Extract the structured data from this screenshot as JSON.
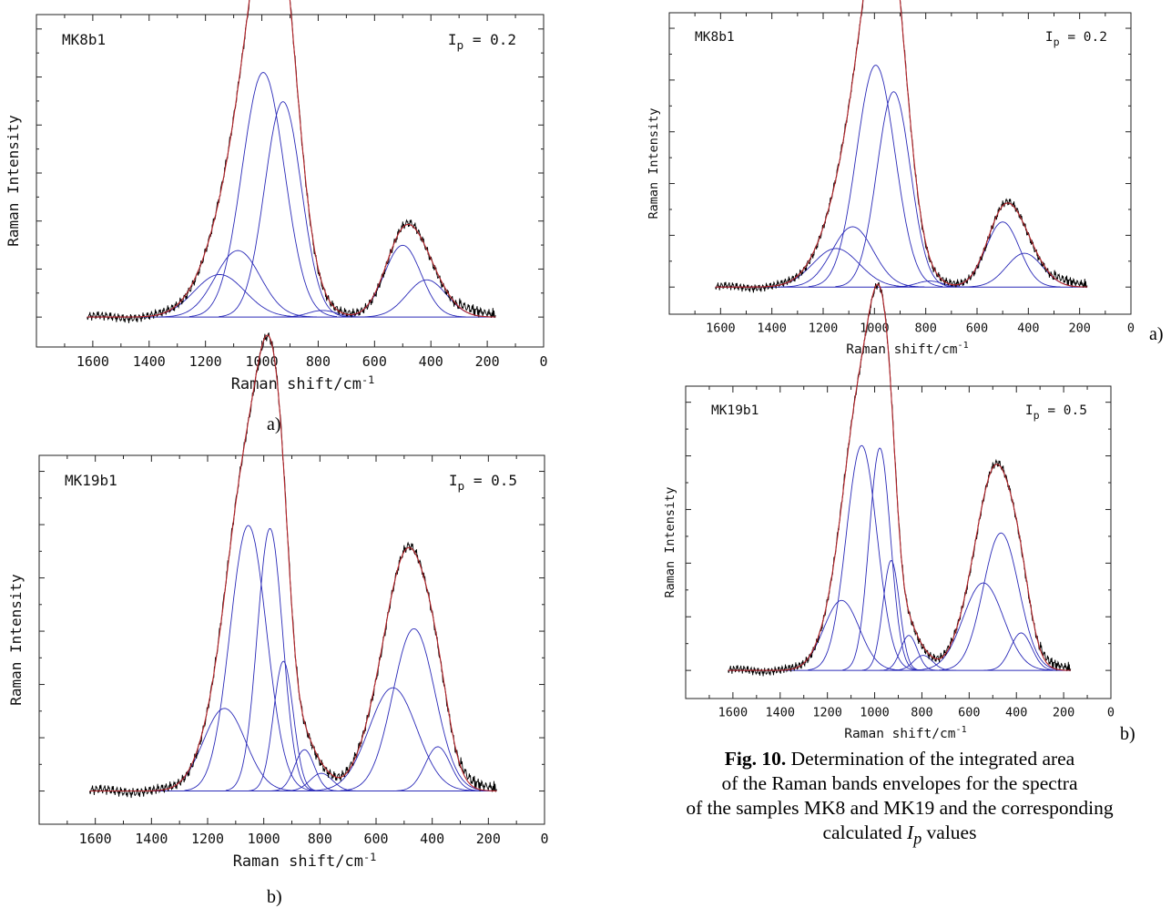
{
  "panel_letters": [
    "a)",
    "b)",
    "a)",
    "b)"
  ],
  "caption": {
    "figure_number": "Fig. 10.",
    "line1": "Determination of the integrated area",
    "line2": "of the Raman bands envelopes for the spectra",
    "line3": "of the samples MK8 and MK19 and the corresponding",
    "line4_pre": "calculated ",
    "line4_var": "I",
    "line4_sub": "p",
    "line4_post": " values"
  },
  "chart_data": [
    {
      "type": "line",
      "sample_label": "MK8b1",
      "ip_label": {
        "symbol": "I",
        "subscript": "p",
        "text": " = 0.2"
      },
      "xlabel": "Raman shift/cm",
      "xlabel_sup": "-1",
      "ylabel": "Raman Intensity",
      "x_ticks": [
        "1600",
        "1400",
        "1200",
        "1000",
        "800",
        "600",
        "400",
        "200",
        "0"
      ],
      "xlim": [
        1800,
        0
      ],
      "ylim": [
        0,
        1.2
      ],
      "x_reversed": true,
      "grid": false,
      "x_range_data": [
        170,
        1620
      ],
      "fit_components": [
        {
          "center": 1150,
          "height": 0.16,
          "width": 90
        },
        {
          "center": 1085,
          "height": 0.25,
          "width": 80
        },
        {
          "center": 995,
          "height": 0.92,
          "width": 75
        },
        {
          "center": 925,
          "height": 0.81,
          "width": 65
        },
        {
          "center": 785,
          "height": 0.025,
          "width": 50
        },
        {
          "center": 500,
          "height": 0.27,
          "width": 65
        },
        {
          "center": 415,
          "height": 0.14,
          "width": 70
        }
      ],
      "series": [
        {
          "role": "measured",
          "color": "#000000"
        },
        {
          "role": "envelope",
          "color": "#b5242a"
        },
        {
          "role": "components",
          "color": "#2a2ab8"
        }
      ]
    },
    {
      "type": "line",
      "sample_label": "MK19b1",
      "ip_label": {
        "symbol": "I",
        "subscript": "p",
        "text": " = 0.5"
      },
      "xlabel": "Raman shift/cm",
      "xlabel_sup": "-1",
      "ylabel": "Raman Intensity",
      "x_ticks": [
        "1600",
        "1400",
        "1200",
        "1000",
        "800",
        "600",
        "400",
        "200",
        "0"
      ],
      "xlim": [
        1800,
        0
      ],
      "ylim": [
        0,
        1.2
      ],
      "x_reversed": true,
      "grid": false,
      "x_range_data": [
        170,
        1620
      ],
      "fit_components": [
        {
          "center": 1140,
          "height": 0.28,
          "width": 75
        },
        {
          "center": 1055,
          "height": 0.9,
          "width": 65
        },
        {
          "center": 978,
          "height": 0.89,
          "width": 45
        },
        {
          "center": 930,
          "height": 0.44,
          "width": 35
        },
        {
          "center": 855,
          "height": 0.14,
          "width": 35
        },
        {
          "center": 795,
          "height": 0.06,
          "width": 40
        },
        {
          "center": 540,
          "height": 0.35,
          "width": 85
        },
        {
          "center": 465,
          "height": 0.55,
          "width": 75
        },
        {
          "center": 380,
          "height": 0.15,
          "width": 45
        }
      ],
      "series": [
        {
          "role": "measured",
          "color": "#000000"
        },
        {
          "role": "envelope",
          "color": "#b5242a"
        },
        {
          "role": "components",
          "color": "#2a2ab8"
        }
      ]
    }
  ]
}
